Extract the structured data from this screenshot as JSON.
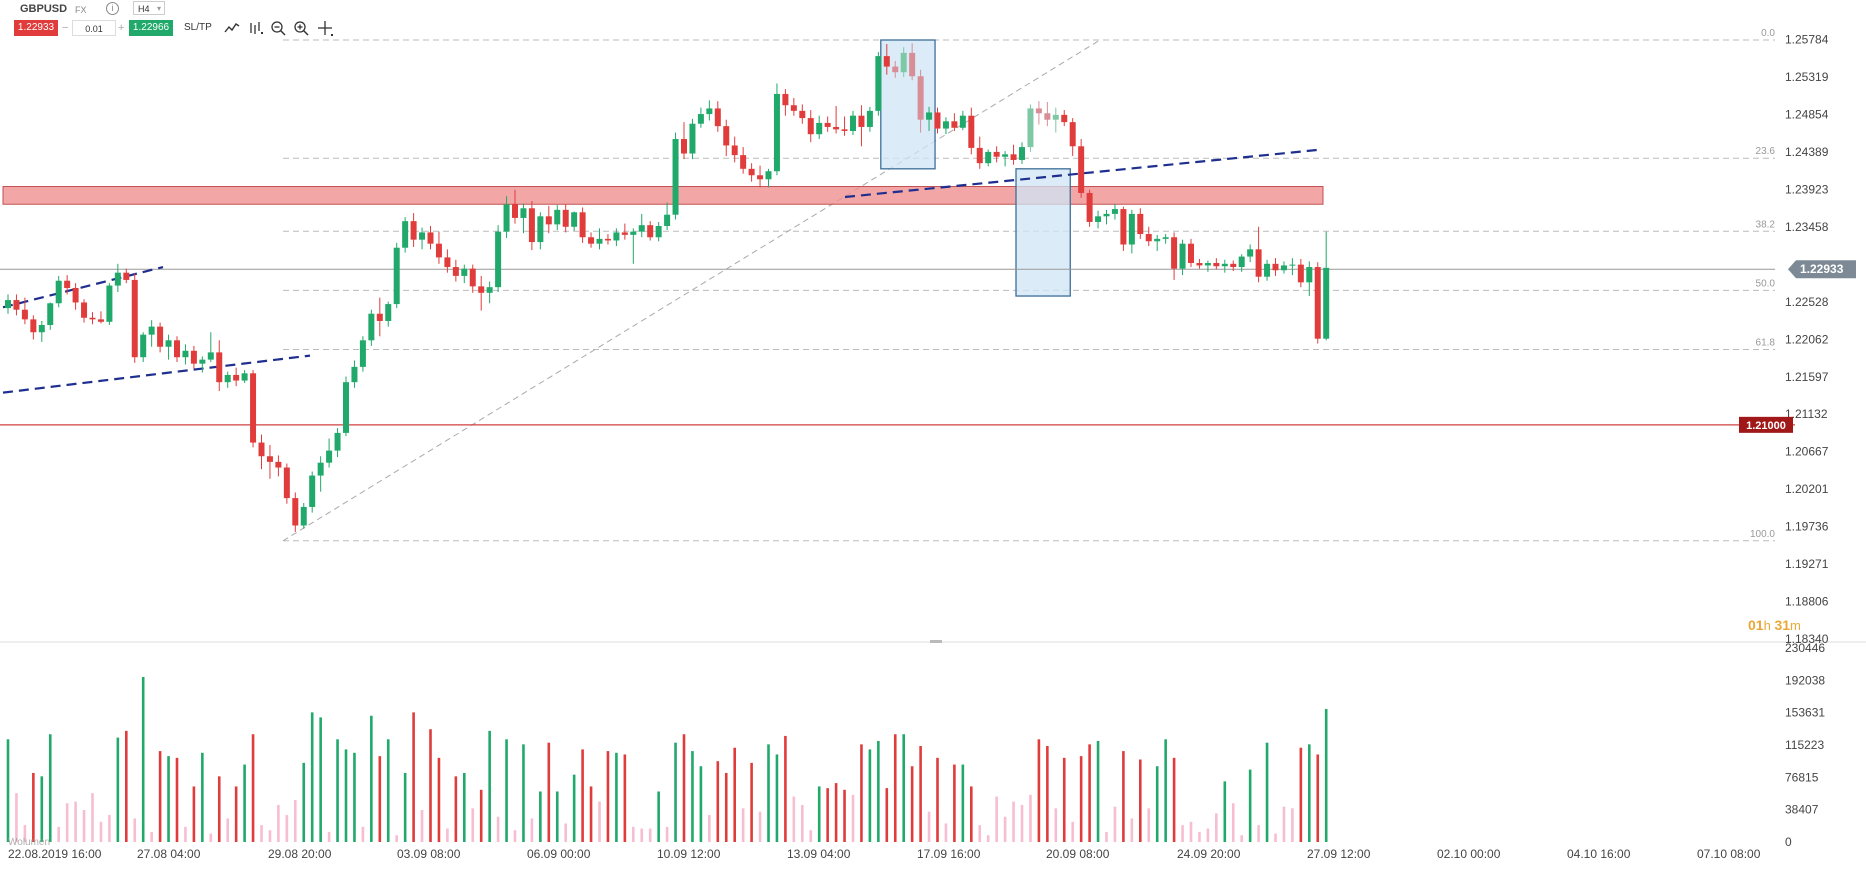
{
  "toolbar": {
    "symbol": "GBPUSD",
    "market_tag": "FX",
    "timeframe": "H4",
    "sell_price": "1.22933",
    "quantity": "0.01",
    "buy_price": "1.22966",
    "sl_tp_label": "SL/TP"
  },
  "price_axis": {
    "labels": [
      "1.25784",
      "1.25319",
      "1.24854",
      "1.24389",
      "1.23923",
      "1.23458",
      "1.22528",
      "1.22062",
      "1.21597",
      "1.21132",
      "1.20667",
      "1.20201",
      "1.19736",
      "1.19271",
      "1.18806",
      "1.18340"
    ],
    "current_price": "1.22933",
    "level_price": "1.21000"
  },
  "fib_levels": [
    "0.0",
    "23.6",
    "38.2",
    "50.0",
    "61.8",
    "100.0"
  ],
  "volume_axis": {
    "labels": [
      "230446",
      "192038",
      "153631",
      "115223",
      "76815",
      "38407",
      "0"
    ]
  },
  "volume_legend": "Wolumen",
  "time_axis": {
    "labels": [
      "22.08.2019 16:00",
      "27.08 04:00",
      "29.08 20:00",
      "03.09 08:00",
      "06.09 00:00",
      "10.09 12:00",
      "13.09 04:00",
      "17.09 16:00",
      "20.09 08:00",
      "24.09 20:00",
      "27.09 12:00",
      "02.10 00:00",
      "04.10 16:00",
      "07.10 08:00"
    ]
  },
  "timer": {
    "hours": "01",
    "h_unit": "h",
    "minutes": "31",
    "m_unit": "m"
  },
  "colors": {
    "up": "#20a96a",
    "down": "#e03c3c",
    "volume_light": "#f7bdd0",
    "zone": "#f09090",
    "box": "#cfe6f5",
    "trend": "#1f2f8f"
  },
  "chart_data": {
    "type": "candlestick",
    "symbol": "GBPUSD",
    "timeframe": "H4",
    "ylim": [
      1.1834,
      1.2578
    ],
    "candles_ohlc": [
      [
        1.2245,
        1.2262,
        1.2238,
        1.2255
      ],
      [
        1.2255,
        1.2262,
        1.2236,
        1.2243
      ],
      [
        1.2243,
        1.2258,
        1.2225,
        1.2231
      ],
      [
        1.2231,
        1.2236,
        1.2206,
        1.2215
      ],
      [
        1.2215,
        1.2229,
        1.2203,
        1.2224
      ],
      [
        1.2224,
        1.2252,
        1.2218,
        1.2251
      ],
      [
        1.2251,
        1.2285,
        1.2246,
        1.2279
      ],
      [
        1.2279,
        1.2286,
        1.2262,
        1.227
      ],
      [
        1.227,
        1.2276,
        1.2243,
        1.2252
      ],
      [
        1.2252,
        1.2256,
        1.2227,
        1.2233
      ],
      [
        1.2233,
        1.224,
        1.2225,
        1.2231
      ],
      [
        1.2231,
        1.2241,
        1.2226,
        1.2228
      ],
      [
        1.2228,
        1.2276,
        1.2224,
        1.2273
      ],
      [
        1.2273,
        1.23,
        1.2265,
        1.2289
      ],
      [
        1.2289,
        1.2294,
        1.2276,
        1.228
      ],
      [
        1.228,
        1.2288,
        1.2177,
        1.2184
      ],
      [
        1.2184,
        1.2215,
        1.2178,
        1.2212
      ],
      [
        1.2212,
        1.223,
        1.2197,
        1.2222
      ],
      [
        1.2222,
        1.2227,
        1.219,
        1.2197
      ],
      [
        1.2197,
        1.2212,
        1.2181,
        1.2205
      ],
      [
        1.2205,
        1.221,
        1.2178,
        1.2184
      ],
      [
        1.2184,
        1.22,
        1.2175,
        1.2192
      ],
      [
        1.2192,
        1.2198,
        1.217,
        1.2176
      ],
      [
        1.2176,
        1.2185,
        1.2165,
        1.2181
      ],
      [
        1.2181,
        1.2215,
        1.2178,
        1.219
      ],
      [
        1.219,
        1.2205,
        1.2142,
        1.2153
      ],
      [
        1.2153,
        1.2166,
        1.2146,
        1.2162
      ],
      [
        1.2162,
        1.2171,
        1.2148,
        1.2155
      ],
      [
        1.2155,
        1.2168,
        1.2152,
        1.2164
      ],
      [
        1.2164,
        1.2168,
        1.2072,
        1.2078
      ],
      [
        1.2078,
        1.2088,
        1.2045,
        1.2061
      ],
      [
        1.2061,
        1.2075,
        1.2033,
        1.2054
      ],
      [
        1.2054,
        1.2062,
        1.2036,
        1.2047
      ],
      [
        1.2047,
        1.2052,
        1.2002,
        1.2009
      ],
      [
        1.2009,
        1.2016,
        1.1967,
        1.1975
      ],
      [
        1.1975,
        1.2003,
        1.1971,
        1.1998
      ],
      [
        1.1998,
        1.2042,
        1.1991,
        1.2037
      ],
      [
        1.2037,
        1.2061,
        1.2017,
        1.2053
      ],
      [
        1.2053,
        1.2083,
        1.2047,
        1.2068
      ],
      [
        1.2068,
        1.2096,
        1.206,
        1.209
      ],
      [
        1.209,
        1.216,
        1.2086,
        1.2153
      ],
      [
        1.2153,
        1.218,
        1.2146,
        1.2172
      ],
      [
        1.2172,
        1.221,
        1.2166,
        1.2205
      ],
      [
        1.2205,
        1.2243,
        1.2198,
        1.2238
      ],
      [
        1.2238,
        1.2258,
        1.221,
        1.2229
      ],
      [
        1.2229,
        1.2253,
        1.2222,
        1.225
      ],
      [
        1.225,
        1.2326,
        1.2245,
        1.232
      ],
      [
        1.232,
        1.2358,
        1.2314,
        1.2353
      ],
      [
        1.2353,
        1.2363,
        1.2321,
        1.233
      ],
      [
        1.233,
        1.2345,
        1.2318,
        1.2339
      ],
      [
        1.2339,
        1.2347,
        1.2318,
        1.2325
      ],
      [
        1.2325,
        1.234,
        1.23,
        1.2308
      ],
      [
        1.2308,
        1.2318,
        1.2289,
        1.2296
      ],
      [
        1.2296,
        1.2305,
        1.2278,
        1.2285
      ],
      [
        1.2285,
        1.2299,
        1.2276,
        1.2294
      ],
      [
        1.2294,
        1.2299,
        1.2264,
        1.2272
      ],
      [
        1.2272,
        1.2285,
        1.2242,
        1.2264
      ],
      [
        1.2264,
        1.2278,
        1.2251,
        1.2271
      ],
      [
        1.2271,
        1.2348,
        1.2265,
        1.234
      ],
      [
        1.234,
        1.2384,
        1.2332,
        1.2374
      ],
      [
        1.2374,
        1.2392,
        1.235,
        1.2357
      ],
      [
        1.2357,
        1.2375,
        1.2338,
        1.2369
      ],
      [
        1.2369,
        1.2378,
        1.2317,
        1.2327
      ],
      [
        1.2327,
        1.2364,
        1.2318,
        1.2359
      ],
      [
        1.2359,
        1.2372,
        1.2338,
        1.2349
      ],
      [
        1.2349,
        1.2373,
        1.2342,
        1.2367
      ],
      [
        1.2367,
        1.2374,
        1.2339,
        1.2346
      ],
      [
        1.2346,
        1.2365,
        1.2341,
        1.2364
      ],
      [
        1.2364,
        1.237,
        1.2326,
        1.2333
      ],
      [
        1.2333,
        1.2339,
        1.232,
        1.2325
      ],
      [
        1.2325,
        1.2344,
        1.2318,
        1.2331
      ],
      [
        1.2331,
        1.2337,
        1.2324,
        1.2329
      ],
      [
        1.2329,
        1.2344,
        1.2322,
        1.2339
      ],
      [
        1.2339,
        1.235,
        1.233,
        1.2336
      ],
      [
        1.2336,
        1.2344,
        1.23,
        1.234
      ],
      [
        1.234,
        1.2362,
        1.2333,
        1.2348
      ],
      [
        1.2348,
        1.2353,
        1.2329,
        1.2333
      ],
      [
        1.2333,
        1.2352,
        1.2328,
        1.2347
      ],
      [
        1.2347,
        1.2376,
        1.2342,
        1.2361
      ],
      [
        1.2361,
        1.2463,
        1.2355,
        1.2455
      ],
      [
        1.2455,
        1.2476,
        1.243,
        1.2437
      ],
      [
        1.2437,
        1.248,
        1.243,
        1.2474
      ],
      [
        1.2474,
        1.2494,
        1.2469,
        1.2486
      ],
      [
        1.2486,
        1.2503,
        1.2478,
        1.2493
      ],
      [
        1.2493,
        1.2502,
        1.2464,
        1.2471
      ],
      [
        1.2471,
        1.2479,
        1.2434,
        1.2447
      ],
      [
        1.2447,
        1.2458,
        1.2426,
        1.2435
      ],
      [
        1.2435,
        1.2445,
        1.2412,
        1.2418
      ],
      [
        1.2418,
        1.2425,
        1.2402,
        1.241
      ],
      [
        1.241,
        1.2422,
        1.2395,
        1.2405
      ],
      [
        1.2405,
        1.2418,
        1.2395,
        1.2415
      ],
      [
        1.2415,
        1.2524,
        1.241,
        1.2511
      ],
      [
        1.2511,
        1.2517,
        1.2484,
        1.2497
      ],
      [
        1.2497,
        1.2506,
        1.2484,
        1.249
      ],
      [
        1.249,
        1.2498,
        1.2474,
        1.2481
      ],
      [
        1.2481,
        1.2491,
        1.2451,
        1.2461
      ],
      [
        1.2461,
        1.2484,
        1.2455,
        1.2475
      ],
      [
        1.2475,
        1.2483,
        1.2464,
        1.247
      ],
      [
        1.247,
        1.2496,
        1.2462,
        1.2467
      ],
      [
        1.2467,
        1.2483,
        1.2459,
        1.2465
      ],
      [
        1.2465,
        1.249,
        1.246,
        1.2484
      ],
      [
        1.2484,
        1.2497,
        1.2446,
        1.247
      ],
      [
        1.247,
        1.2495,
        1.2464,
        1.249
      ],
      [
        1.249,
        1.2563,
        1.2484,
        1.2558
      ],
      [
        1.2558,
        1.2573,
        1.2535,
        1.2545
      ],
      [
        1.2545,
        1.2552,
        1.2531,
        1.2538
      ],
      [
        1.2538,
        1.2569,
        1.2532,
        1.2562
      ],
      [
        1.2562,
        1.2574,
        1.2528,
        1.2533
      ],
      [
        1.2533,
        1.2541,
        1.2463,
        1.2479
      ],
      [
        1.2479,
        1.2495,
        1.2465,
        1.2488
      ],
      [
        1.2488,
        1.2494,
        1.2462,
        1.2468
      ],
      [
        1.2468,
        1.2482,
        1.2461,
        1.2477
      ],
      [
        1.2477,
        1.2487,
        1.2465,
        1.2469
      ],
      [
        1.2469,
        1.249,
        1.2466,
        1.2484
      ],
      [
        1.2484,
        1.2494,
        1.2436,
        1.2444
      ],
      [
        1.2444,
        1.2458,
        1.2418,
        1.2425
      ],
      [
        1.2425,
        1.2442,
        1.2421,
        1.2439
      ],
      [
        1.2439,
        1.2446,
        1.2426,
        1.2433
      ],
      [
        1.2433,
        1.244,
        1.2421,
        1.2436
      ],
      [
        1.2436,
        1.2448,
        1.2423,
        1.2429
      ],
      [
        1.2429,
        1.2451,
        1.2424,
        1.2445
      ],
      [
        1.2445,
        1.2498,
        1.2439,
        1.2493
      ],
      [
        1.2493,
        1.2502,
        1.2473,
        1.2487
      ],
      [
        1.2487,
        1.2501,
        1.2471,
        1.2479
      ],
      [
        1.2479,
        1.2494,
        1.2463,
        1.2485
      ],
      [
        1.2485,
        1.2491,
        1.2471,
        1.2476
      ],
      [
        1.2476,
        1.2481,
        1.2434,
        1.2446
      ],
      [
        1.2446,
        1.2455,
        1.2382,
        1.2388
      ],
      [
        1.2388,
        1.2392,
        1.2346,
        1.2352
      ],
      [
        1.2352,
        1.2366,
        1.2344,
        1.2359
      ],
      [
        1.2359,
        1.2367,
        1.2349,
        1.2362
      ],
      [
        1.2362,
        1.2374,
        1.2355,
        1.2368
      ],
      [
        1.2368,
        1.2371,
        1.2316,
        1.2324
      ],
      [
        1.2324,
        1.2367,
        1.2313,
        1.2362
      ],
      [
        1.2362,
        1.2369,
        1.2331,
        1.2337
      ],
      [
        1.2337,
        1.2346,
        1.2322,
        1.2328
      ],
      [
        1.2328,
        1.2336,
        1.2316,
        1.2331
      ],
      [
        1.2331,
        1.2337,
        1.2325,
        1.2333
      ],
      [
        1.2333,
        1.2339,
        1.228,
        1.2294
      ],
      [
        1.2294,
        1.233,
        1.2286,
        1.2325
      ],
      [
        1.2325,
        1.2331,
        1.2296,
        1.2301
      ],
      [
        1.2301,
        1.2306,
        1.2294,
        1.2298
      ],
      [
        1.2298,
        1.2304,
        1.229,
        1.2301
      ],
      [
        1.2301,
        1.2307,
        1.2293,
        1.2297
      ],
      [
        1.2297,
        1.2305,
        1.2289,
        1.23
      ],
      [
        1.23,
        1.2304,
        1.2291,
        1.2296
      ],
      [
        1.2296,
        1.2312,
        1.229,
        1.2309
      ],
      [
        1.2309,
        1.2324,
        1.2302,
        1.2318
      ],
      [
        1.2318,
        1.2346,
        1.2277,
        1.2284
      ],
      [
        1.2284,
        1.2305,
        1.2279,
        1.23
      ],
      [
        1.23,
        1.2307,
        1.2285,
        1.2292
      ],
      [
        1.2292,
        1.2303,
        1.2288,
        1.2298
      ],
      [
        1.2298,
        1.2307,
        1.2286,
        1.2299
      ],
      [
        1.2299,
        1.2306,
        1.2271,
        1.2277
      ],
      [
        1.2277,
        1.2303,
        1.226,
        1.2296
      ],
      [
        1.2296,
        1.2302,
        1.2201,
        1.2207
      ],
      [
        1.2207,
        1.234,
        1.2205,
        1.2295
      ]
    ],
    "volumes": [
      122000,
      58000,
      20000,
      82000,
      78000,
      128000,
      18000,
      46000,
      48000,
      38000,
      58000,
      24000,
      32000,
      124000,
      132000,
      28000,
      196000,
      12000,
      108000,
      102000,
      100000,
      18000,
      66000,
      106000,
      10000,
      78000,
      28000,
      66000,
      92000,
      128000,
      20000,
      14000,
      44000,
      32000,
      50000,
      94000,
      154000,
      148000,
      12000,
      122000,
      110000,
      106000,
      18000,
      150000,
      102000,
      122000,
      8000,
      82000,
      154000,
      38000,
      134000,
      100000,
      16000,
      78000,
      82000,
      40000,
      62000,
      132000,
      30000,
      122000,
      14000,
      116000,
      28000,
      60000,
      118000,
      60000,
      22000,
      80000,
      110000,
      66000,
      48000,
      108000,
      106000,
      104000,
      18000,
      16000,
      16000,
      60000,
      18000,
      118000,
      128000,
      108000,
      90000,
      32000,
      96000,
      82000,
      112000,
      40000,
      94000,
      36000,
      116000,
      104000,
      126000,
      54000,
      44000,
      14000,
      66000,
      64000,
      70000,
      62000,
      56000,
      116000,
      110000,
      120000,
      64000,
      128000,
      128000,
      90000,
      114000,
      36000,
      100000,
      22000,
      92000,
      92000,
      66000,
      20000,
      8000,
      54000,
      30000,
      48000,
      44000,
      56000,
      122000,
      114000,
      40000,
      100000,
      24000,
      102000,
      116000,
      120000,
      12000,
      42000,
      108000,
      28000,
      98000,
      40000,
      90000,
      122000,
      100000,
      20000,
      24000,
      12000,
      16000,
      34000,
      72000,
      46000,
      8000,
      86000,
      20000,
      118000,
      10000,
      42000,
      40000,
      112000,
      116000,
      104000,
      158000
    ],
    "levels": {
      "current_price": 1.22933,
      "horizontal_level": 1.21,
      "resistance_zone": [
        1.2374,
        1.2396
      ]
    },
    "fibonacci": {
      "from_price": 1.1956,
      "to_price": 1.2578,
      "ratios": [
        0.0,
        23.6,
        38.2,
        50.0,
        61.8,
        100.0
      ],
      "prices": [
        1.2578,
        1.24312,
        1.23404,
        1.2267,
        1.21936,
        1.1956
      ]
    }
  }
}
